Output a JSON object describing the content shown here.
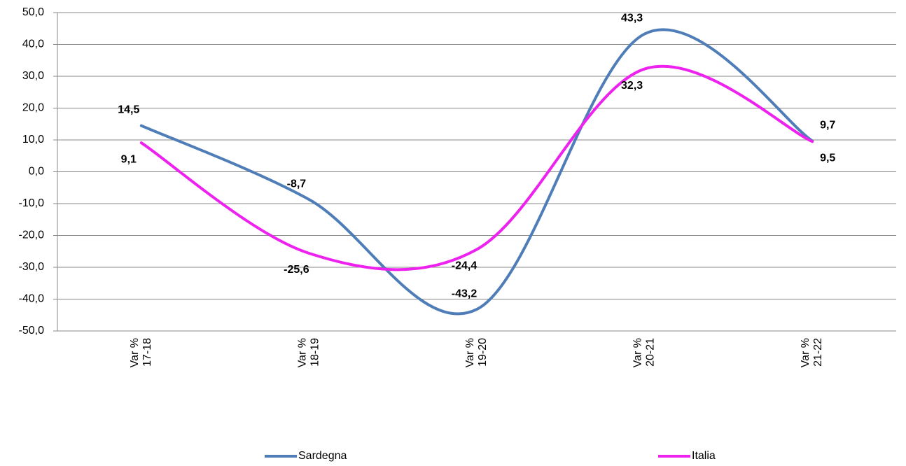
{
  "chart_data": {
    "type": "line",
    "categories": [
      "Var % 17-18",
      "Var % 18-19",
      "Var % 19-20",
      "Var % 20-21",
      "Var % 21-22"
    ],
    "series": [
      {
        "name": "Sardegna",
        "color": "#4f7db8",
        "values": [
          14.5,
          -8.7,
          -43.2,
          43.3,
          9.7
        ],
        "value_labels": [
          "14,5",
          "-8,7",
          "-43,2",
          "43,3",
          "9,7"
        ]
      },
      {
        "name": "Italia",
        "color": "#ee22ee",
        "values": [
          9.1,
          -25.6,
          -24.4,
          32.3,
          9.5
        ],
        "value_labels": [
          "9,1",
          "-25,6",
          "-24,4",
          "32,3",
          "9,5"
        ]
      }
    ],
    "ylim": [
      -50,
      50
    ],
    "yticks": [
      {
        "value": -50,
        "label": "-50,0"
      },
      {
        "value": -40,
        "label": "-40,0"
      },
      {
        "value": -30,
        "label": "-30,0"
      },
      {
        "value": -20,
        "label": "-20,0"
      },
      {
        "value": -10,
        "label": "-10,0"
      },
      {
        "value": 0,
        "label": "0,0"
      },
      {
        "value": 10,
        "label": "10,0"
      },
      {
        "value": 20,
        "label": "20,0"
      },
      {
        "value": 30,
        "label": "30,0"
      },
      {
        "value": 40,
        "label": "40,0"
      },
      {
        "value": 50,
        "label": "50,0"
      }
    ],
    "grid": true,
    "smooth": true,
    "legend": "bottom"
  }
}
